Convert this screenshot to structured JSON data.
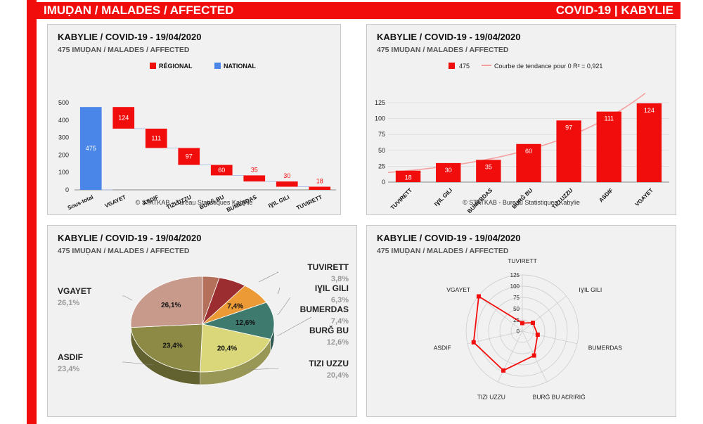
{
  "header": {
    "left": "IMUḌAN / MALADES / AFFECTED",
    "right": "COVID-19 | KABYLIE"
  },
  "panels": {
    "waterfall": {
      "title": "KABYLIE / COVID-19 - 19/04/2020",
      "subtitle": "475 IMUḌAN / MALADES / AFFECTED",
      "footer": "© STATKAB - Bureau Statistiques Kabylie"
    },
    "bar": {
      "title": "KABYLIE / COVID-19 - 19/04/2020",
      "subtitle": "475 IMUḌAN / MALADES / AFFECTED",
      "footer": "© STATKAB - Bureau Statistiques Kabylie"
    },
    "pie": {
      "title": "KABYLIE / COVID-19 - 19/04/2020",
      "subtitle": "475 IMUḌAN / MALADES / AFFECTED"
    },
    "radar": {
      "title": "KABYLIE / COVID-19 - 19/04/2020",
      "subtitle": "475 IMUḌAN / MALADES / AFFECTED"
    }
  },
  "colors": {
    "red": "#f20d0d",
    "blue": "#4a86e8",
    "trend": "#f4a0a0"
  },
  "chart_data": [
    {
      "type": "bar",
      "subtype": "waterfall",
      "legend": [
        "RÉGIONAL",
        "NATIONAL"
      ],
      "categories": [
        "Sous-total",
        "VGAYET",
        "ASDIF",
        "TIZI UZZU",
        "BURĞ BU",
        "BUMERDAS",
        "IƔIL GILI",
        "TUVIRETT"
      ],
      "values": [
        475,
        124,
        111,
        97,
        60,
        35,
        30,
        18
      ],
      "ylim": [
        0,
        500
      ],
      "yticks": [
        0,
        100,
        200,
        300,
        400,
        500
      ]
    },
    {
      "type": "bar",
      "series": [
        {
          "name": "475",
          "values": [
            18,
            30,
            35,
            60,
            97,
            111,
            124
          ]
        }
      ],
      "trendline_label": "Courbe de tendance pour 0 R² = 0,921",
      "categories": [
        "TUVIRETT",
        "IƔIL GILI",
        "BUMERDAS",
        "BURĞ BU",
        "TIZI UZZU",
        "ASDIF",
        "VGAYET"
      ],
      "ylim": [
        0,
        125
      ],
      "yticks": [
        0,
        25,
        50,
        75,
        100,
        125
      ]
    },
    {
      "type": "pie",
      "slices": [
        {
          "label": "TUVIRETT",
          "value": 3.8,
          "pct": "3,8%",
          "color": "#b4705a"
        },
        {
          "label": "IƔIL GILI",
          "value": 6.3,
          "pct": "6,3%",
          "color": "#9b2d30"
        },
        {
          "label": "BUMERDAS",
          "value": 7.4,
          "pct": "7,4%",
          "color": "#ec9a36"
        },
        {
          "label": "BURĞ BU",
          "value": 12.6,
          "pct": "12,6%",
          "color": "#3f7a6e"
        },
        {
          "label": "TIZI UZZU",
          "value": 20.4,
          "pct": "20,4%",
          "color": "#d9d77a"
        },
        {
          "label": "ASDIF",
          "value": 23.4,
          "pct": "23,4%",
          "color": "#8c8a45"
        },
        {
          "label": "VGAYET",
          "value": 26.1,
          "pct": "26,1%",
          "color": "#c79a8c"
        }
      ]
    },
    {
      "type": "radar",
      "axes": [
        "TUVIRETT",
        "IƔIL GILI",
        "BUMERDAS",
        "BURĞ BU AƐRIRIĞ",
        "TIZI UZZU",
        "ASDIF",
        "VGAYET"
      ],
      "values": [
        18,
        30,
        35,
        60,
        97,
        111,
        124
      ],
      "rlim": [
        0,
        125
      ],
      "rticks": [
        0,
        25,
        50,
        75,
        100,
        125
      ]
    }
  ]
}
